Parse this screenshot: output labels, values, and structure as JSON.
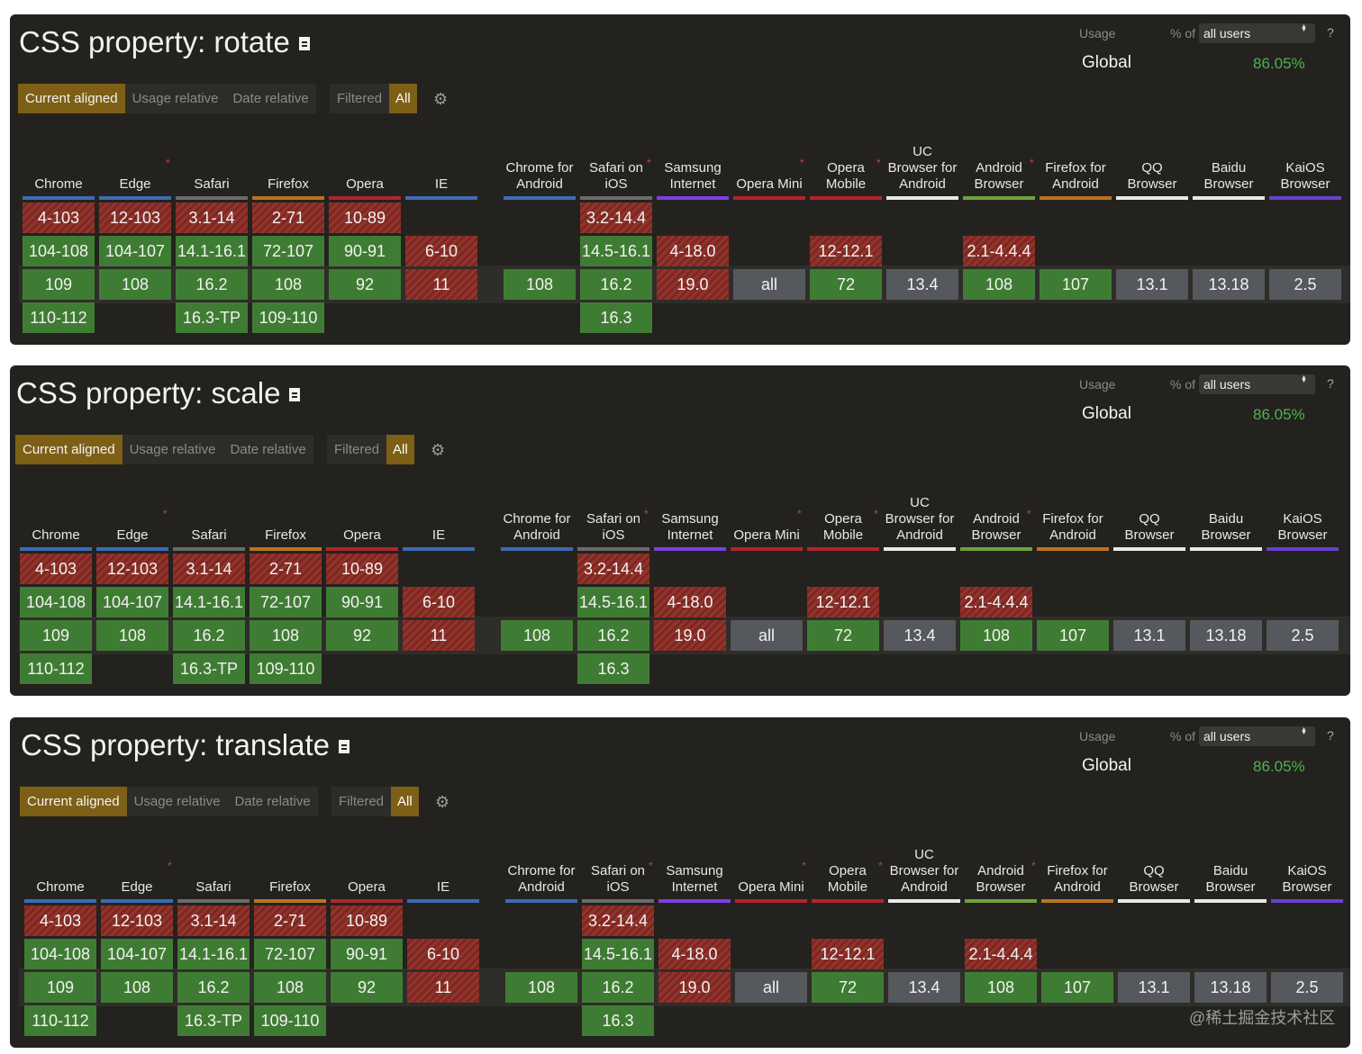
{
  "common": {
    "usage_label": "Usage",
    "pct_label": "% of",
    "users_select_value": "all users",
    "help_label": "?",
    "global_label": "Global",
    "global_value": "86.05%",
    "modes": [
      "Current aligned",
      "Usage relative",
      "Date relative"
    ],
    "filtered_label": "Filtered",
    "all_label": "All",
    "colors": {
      "panel_bg": "#24221f",
      "supported": "#3f7c33",
      "unsupported": "#8a2a23",
      "unknown": "#55585c",
      "active_mode": "#7d5f16",
      "usage_green": "#4fb14f"
    }
  },
  "browsers": [
    {
      "name": "Chrome",
      "color": "#3b6cb5",
      "star": false
    },
    {
      "name": "Edge",
      "color": "#3b6cb5",
      "star": true
    },
    {
      "name": "Safari",
      "color": "#6b6b6b",
      "star": false
    },
    {
      "name": "Firefox",
      "color": "#b9741f",
      "star": false
    },
    {
      "name": "Opera",
      "color": "#b0262d",
      "star": false
    },
    {
      "name": "IE",
      "color": "#3b6cb5",
      "star": false
    },
    {
      "name": "Chrome for Android",
      "color": "#3b6cb5",
      "star": false
    },
    {
      "name": "Safari on iOS",
      "color": "#6b6b6b",
      "star": true
    },
    {
      "name": "Samsung Internet",
      "color": "#7b3fe4",
      "star": false
    },
    {
      "name": "Opera Mini",
      "color": "#b0262d",
      "star": true
    },
    {
      "name": "Opera Mobile",
      "color": "#b0262d",
      "star": true
    },
    {
      "name": "UC Browser for Android",
      "color": "#e8e8e8",
      "star": false
    },
    {
      "name": "Android Browser",
      "color": "#6fa23a",
      "star": true
    },
    {
      "name": "Firefox for Android",
      "color": "#b9741f",
      "star": false
    },
    {
      "name": "QQ Browser",
      "color": "#e8e8e8",
      "star": false
    },
    {
      "name": "Baidu Browser",
      "color": "#e8e8e8",
      "star": false
    },
    {
      "name": "KaiOS Browser",
      "color": "#6b3fd0",
      "star": false
    }
  ],
  "support_table": [
    [
      [
        "4-103",
        "n"
      ],
      [
        "104-108",
        "y"
      ],
      [
        "109",
        "y"
      ],
      [
        "110-112",
        "y"
      ]
    ],
    [
      [
        "12-103",
        "n"
      ],
      [
        "104-107",
        "y"
      ],
      [
        "108",
        "y"
      ]
    ],
    [
      [
        "3.1-14",
        "n"
      ],
      [
        "14.1-16.1",
        "y"
      ],
      [
        "16.2",
        "y"
      ],
      [
        "16.3-TP",
        "y"
      ]
    ],
    [
      [
        "2-71",
        "n"
      ],
      [
        "72-107",
        "y"
      ],
      [
        "108",
        "y"
      ],
      [
        "109-110",
        "y"
      ]
    ],
    [
      [
        "10-89",
        "n"
      ],
      [
        "90-91",
        "y"
      ],
      [
        "92",
        "y"
      ]
    ],
    [
      null,
      [
        "6-10",
        "n"
      ],
      [
        "11",
        "n"
      ]
    ],
    [
      null,
      null,
      [
        "108",
        "y"
      ]
    ],
    [
      [
        "3.2-14.4",
        "n"
      ],
      [
        "14.5-16.1",
        "y"
      ],
      [
        "16.2",
        "y"
      ],
      [
        "16.3",
        "y"
      ]
    ],
    [
      null,
      [
        "4-18.0",
        "n"
      ],
      [
        "19.0",
        "n"
      ]
    ],
    [
      null,
      null,
      [
        "all",
        "u"
      ]
    ],
    [
      null,
      [
        "12-12.1",
        "n"
      ],
      [
        "72",
        "y"
      ]
    ],
    [
      null,
      null,
      [
        "13.4",
        "u"
      ]
    ],
    [
      null,
      [
        "2.1-4.4.4",
        "n"
      ],
      [
        "108",
        "y"
      ]
    ],
    [
      null,
      null,
      [
        "107",
        "y"
      ]
    ],
    [
      null,
      null,
      [
        "13.1",
        "u"
      ]
    ],
    [
      null,
      null,
      [
        "13.18",
        "u"
      ]
    ],
    [
      null,
      null,
      [
        "2.5",
        "u"
      ]
    ]
  ],
  "features": [
    {
      "title": "CSS property: rotate"
    },
    {
      "title": "CSS property: scale"
    },
    {
      "title": "CSS property: translate"
    }
  ],
  "watermark": "@稀土掘金技术社区"
}
